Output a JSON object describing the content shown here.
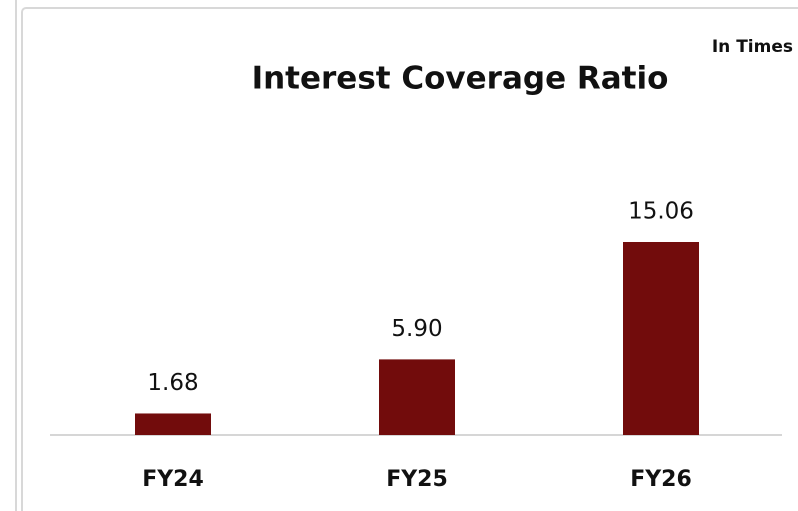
{
  "chart_data": {
    "type": "bar",
    "title": "Interest Coverage Ratio",
    "unit_note": "In Times",
    "categories": [
      "FY24",
      "FY25",
      "FY26"
    ],
    "values": [
      1.68,
      5.9,
      15.06
    ],
    "value_labels": [
      "1.68",
      "5.90",
      "15.06"
    ],
    "color": "#720c0c"
  }
}
